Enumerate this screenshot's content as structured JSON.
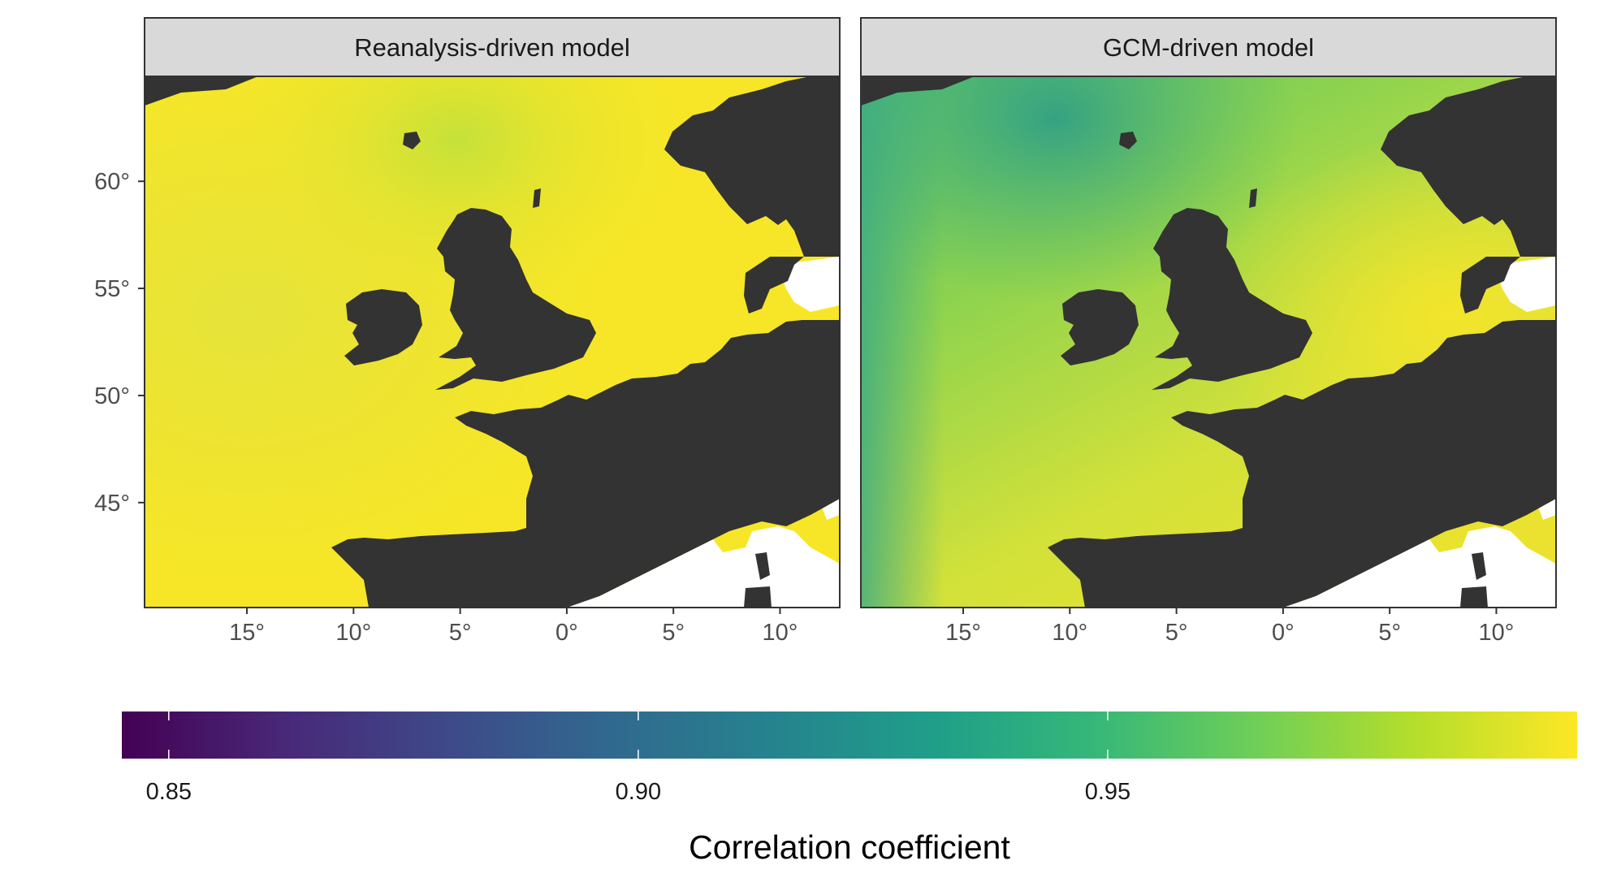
{
  "panels": [
    {
      "id": "reanalysis",
      "title": "Reanalysis-driven model"
    },
    {
      "id": "gcm",
      "title": "GCM-driven model"
    }
  ],
  "axes": {
    "x_ticks": [
      "15°",
      "10°",
      "5°",
      "0°",
      "5°",
      "10°"
    ],
    "x_tick_lon": [
      -15,
      -10,
      -5,
      0,
      5,
      10
    ],
    "y_ticks": [
      "60°",
      "55°",
      "50°",
      "45°"
    ],
    "y_tick_lat": [
      60,
      55,
      50,
      45
    ],
    "lon_range": [
      -19.8,
      12.8
    ],
    "lat_range": [
      40.1,
      64.9
    ]
  },
  "colorbar": {
    "title": "Correlation coefficient",
    "labels": [
      "0.85",
      "0.90",
      "0.95"
    ],
    "label_values": [
      0.85,
      0.9,
      0.95
    ],
    "range": [
      0.845,
      1.0
    ],
    "palette": "viridis",
    "stops": [
      "#440154",
      "#482878",
      "#3e4989",
      "#31688e",
      "#26828e",
      "#1f9e89",
      "#35b779",
      "#6ece58",
      "#b5de2b",
      "#fde725"
    ]
  },
  "colors": {
    "land": "#333333",
    "outside_domain": "#ffffff",
    "strip_fill": "#d9d9d9",
    "panel_border": "#333333",
    "sea_high": "#f2e32a",
    "sea_mid": "#c9df3a",
    "sea_low": "#5cbf6a"
  }
}
